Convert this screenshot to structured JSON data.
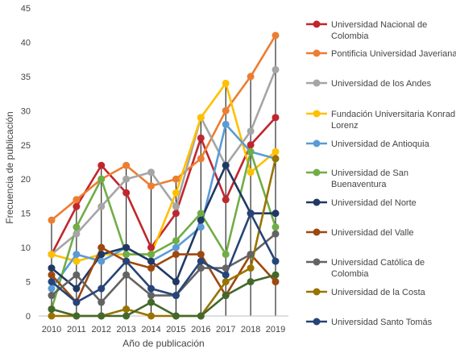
{
  "chart_data": {
    "type": "line",
    "xlabel": "Año de publicación",
    "ylabel": "Frecuencia de publicación",
    "x": [
      "2010",
      "2011",
      "2012",
      "2013",
      "2014",
      "2015",
      "2016",
      "2017",
      "2018",
      "2019"
    ],
    "ylim": [
      0,
      45
    ],
    "yticks": [
      0,
      5,
      10,
      15,
      20,
      25,
      30,
      35,
      40,
      45
    ],
    "grid": false,
    "legend_position": "right",
    "series": [
      {
        "name": "Universidad Nacional de Colombia",
        "color": "#C0272D",
        "values": [
          9,
          16,
          22,
          18,
          10,
          15,
          26,
          17,
          25,
          29
        ]
      },
      {
        "name": "Pontificia Universidad Javeriana",
        "color": "#ED7D31",
        "values": [
          14,
          17,
          20,
          22,
          19,
          20,
          23,
          30,
          35,
          41
        ]
      },
      {
        "name": "Universidad de los Andes",
        "color": "#A5A5A5",
        "values": [
          9,
          12,
          16,
          20,
          21,
          16,
          29,
          22,
          27,
          36
        ]
      },
      {
        "name": "Fundación Universitaria Konrad Lorenz",
        "color": "#FFC000",
        "values": [
          9,
          8,
          9,
          9,
          9,
          18,
          29,
          34,
          21,
          24
        ]
      },
      {
        "name": "Universidad de Antioquia",
        "color": "#5B9BD5",
        "values": [
          4,
          9,
          8,
          10,
          8,
          10,
          13,
          28,
          24,
          23
        ]
      },
      {
        "name": "Universidad de San Buenaventura",
        "color": "#70AD47",
        "values": [
          1,
          13,
          20,
          9,
          9,
          11,
          15,
          9,
          24,
          13
        ]
      },
      {
        "name": "Universidad del Norte",
        "color": "#203864",
        "values": [
          7,
          4,
          9,
          10,
          8,
          5,
          14,
          22,
          15,
          15
        ]
      },
      {
        "name": "Universidad del Valle",
        "color": "#9E480E",
        "values": [
          6,
          2,
          10,
          8,
          7,
          9,
          9,
          3,
          9,
          5
        ]
      },
      {
        "name": "Universidad Católica de Colombia",
        "color": "#636363",
        "values": [
          3,
          6,
          2,
          6,
          3,
          3,
          7,
          7,
          9,
          12
        ]
      },
      {
        "name": "Universidad de la Costa",
        "color": "#997300",
        "values": [
          0,
          0,
          0,
          1,
          0,
          0,
          0,
          5,
          7,
          23
        ]
      },
      {
        "name": "Universidad Santo Tomás",
        "color": "#264478",
        "values": [
          5,
          2,
          4,
          8,
          4,
          3,
          8,
          6,
          15,
          8
        ]
      },
      {
        "name": "",
        "color": "#43682B",
        "values": [
          1,
          0,
          0,
          0,
          2,
          0,
          0,
          3,
          5,
          6
        ]
      }
    ]
  }
}
